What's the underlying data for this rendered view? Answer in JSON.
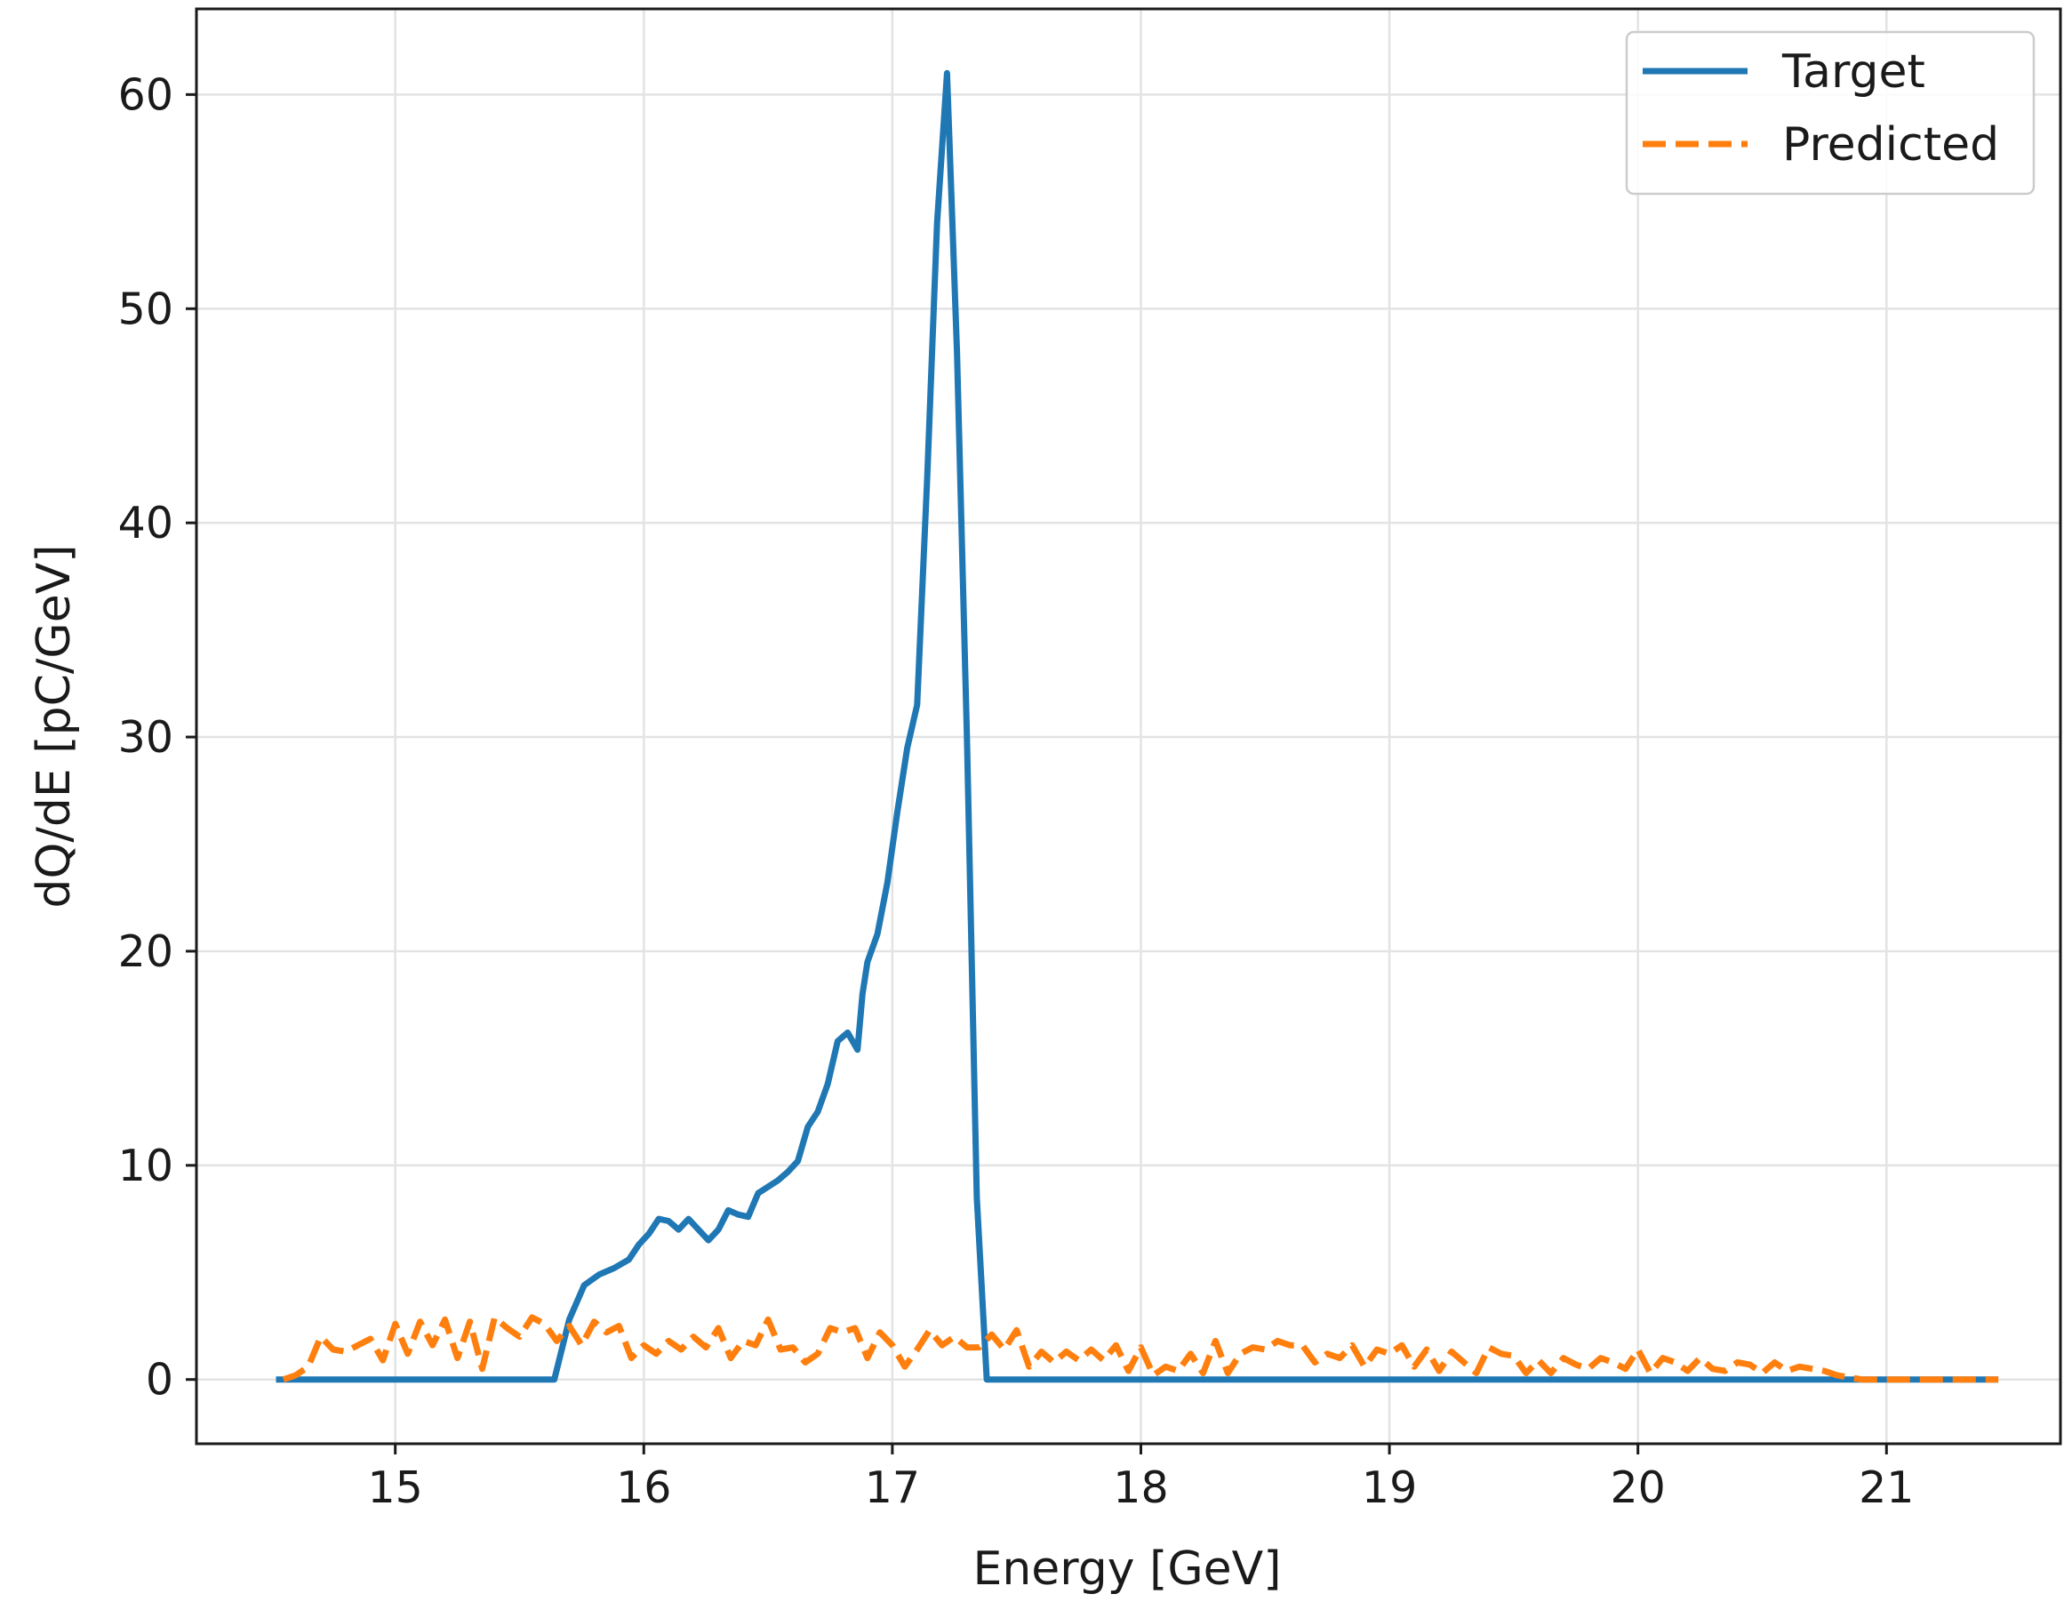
{
  "chart_data": {
    "type": "line",
    "xlabel": "Energy [GeV]",
    "ylabel": "dQ/dE [pC/GeV]",
    "xlim": [
      14.2,
      21.7
    ],
    "ylim": [
      -3,
      64
    ],
    "xticks": [
      15,
      16,
      17,
      18,
      19,
      20,
      21
    ],
    "yticks": [
      0,
      10,
      20,
      30,
      40,
      50,
      60
    ],
    "grid": true,
    "legend_position": "top-right",
    "colors": {
      "target": "#1f77b4",
      "predicted": "#ff7f0e"
    },
    "series": [
      {
        "name": "Target",
        "style": "solid",
        "x": [
          14.52,
          15.64,
          15.7,
          15.76,
          15.82,
          15.88,
          15.94,
          15.98,
          16.02,
          16.06,
          16.1,
          16.14,
          16.18,
          16.22,
          16.26,
          16.3,
          16.34,
          16.38,
          16.42,
          16.46,
          16.5,
          16.54,
          16.58,
          16.62,
          16.66,
          16.7,
          16.74,
          16.78,
          16.82,
          16.86,
          16.88,
          16.9,
          16.94,
          16.98,
          17.02,
          17.06,
          17.1,
          17.14,
          17.18,
          17.22,
          17.26,
          17.3,
          17.34,
          17.38,
          17.41,
          21.45
        ],
        "y": [
          0,
          0,
          2.8,
          4.4,
          4.9,
          5.2,
          5.6,
          6.3,
          6.8,
          7.5,
          7.4,
          7.0,
          7.5,
          7.0,
          6.5,
          7.0,
          7.9,
          7.7,
          7.6,
          8.7,
          9.0,
          9.3,
          9.7,
          10.2,
          11.8,
          12.5,
          13.8,
          15.8,
          16.2,
          15.4,
          18.0,
          19.5,
          20.8,
          23.2,
          26.5,
          29.5,
          31.5,
          42.0,
          54.0,
          61.0,
          48.0,
          30.0,
          8.5,
          0,
          0,
          0
        ]
      },
      {
        "name": "Predicted",
        "style": "dashed",
        "x": [
          14.55,
          14.6,
          14.65,
          14.7,
          14.75,
          14.8,
          14.85,
          14.9,
          14.95,
          15.0,
          15.05,
          15.1,
          15.15,
          15.2,
          15.25,
          15.3,
          15.35,
          15.4,
          15.45,
          15.5,
          15.55,
          15.6,
          15.65,
          15.7,
          15.75,
          15.8,
          15.85,
          15.9,
          15.95,
          16.0,
          16.05,
          16.1,
          16.15,
          16.2,
          16.25,
          16.3,
          16.35,
          16.4,
          16.45,
          16.5,
          16.55,
          16.6,
          16.65,
          16.7,
          16.75,
          16.8,
          16.85,
          16.9,
          16.95,
          17.0,
          17.05,
          17.1,
          17.15,
          17.2,
          17.25,
          17.3,
          17.35,
          17.4,
          17.45,
          17.5,
          17.55,
          17.6,
          17.65,
          17.7,
          17.75,
          17.8,
          17.85,
          17.9,
          17.95,
          18.0,
          18.05,
          18.1,
          18.15,
          18.2,
          18.25,
          18.3,
          18.35,
          18.4,
          18.45,
          18.5,
          18.55,
          18.6,
          18.65,
          18.7,
          18.75,
          18.8,
          18.85,
          18.9,
          18.95,
          19.0,
          19.05,
          19.1,
          19.15,
          19.2,
          19.25,
          19.3,
          19.35,
          19.4,
          19.45,
          19.5,
          19.55,
          19.6,
          19.65,
          19.7,
          19.75,
          19.8,
          19.85,
          19.9,
          19.95,
          20.0,
          20.05,
          20.1,
          20.15,
          20.2,
          20.25,
          20.3,
          20.35,
          20.4,
          20.45,
          20.5,
          20.55,
          20.6,
          20.65,
          20.7,
          20.75,
          20.8,
          20.85,
          20.9,
          20.95,
          21.0,
          21.1,
          21.2,
          21.3,
          21.4,
          21.45
        ],
        "y": [
          0.0,
          0.2,
          0.6,
          2.0,
          1.4,
          1.3,
          1.6,
          1.9,
          0.9,
          2.6,
          1.2,
          2.7,
          1.6,
          2.8,
          1.0,
          2.7,
          0.5,
          2.9,
          2.4,
          2.0,
          2.9,
          2.6,
          1.8,
          2.5,
          1.6,
          2.7,
          2.2,
          2.5,
          1.0,
          1.6,
          1.2,
          1.8,
          1.4,
          2.0,
          1.5,
          2.4,
          1.0,
          1.8,
          1.6,
          2.8,
          1.4,
          1.5,
          0.8,
          1.2,
          2.4,
          2.2,
          2.4,
          1.0,
          2.2,
          1.6,
          0.6,
          1.4,
          2.3,
          1.6,
          2.0,
          1.5,
          1.5,
          2.1,
          1.4,
          2.3,
          0.6,
          1.3,
          0.8,
          1.3,
          0.9,
          1.4,
          0.9,
          1.6,
          0.4,
          1.5,
          0.2,
          0.6,
          0.4,
          1.2,
          0.3,
          1.8,
          0.3,
          1.2,
          1.5,
          1.4,
          1.8,
          1.6,
          1.6,
          0.8,
          1.2,
          1.0,
          1.6,
          0.6,
          1.4,
          1.2,
          1.6,
          0.6,
          1.4,
          0.4,
          1.3,
          0.8,
          0.3,
          1.5,
          1.2,
          1.1,
          0.3,
          0.9,
          0.3,
          1.0,
          0.7,
          0.5,
          1.0,
          0.8,
          0.5,
          1.4,
          0.3,
          1.0,
          0.8,
          0.4,
          1.0,
          0.5,
          0.4,
          0.8,
          0.7,
          0.3,
          0.8,
          0.4,
          0.6,
          0.5,
          0.4,
          0.2,
          0.1,
          0.0,
          0.0,
          0.0,
          0.0,
          0.0,
          0.0,
          0.0,
          0.0
        ]
      }
    ]
  }
}
